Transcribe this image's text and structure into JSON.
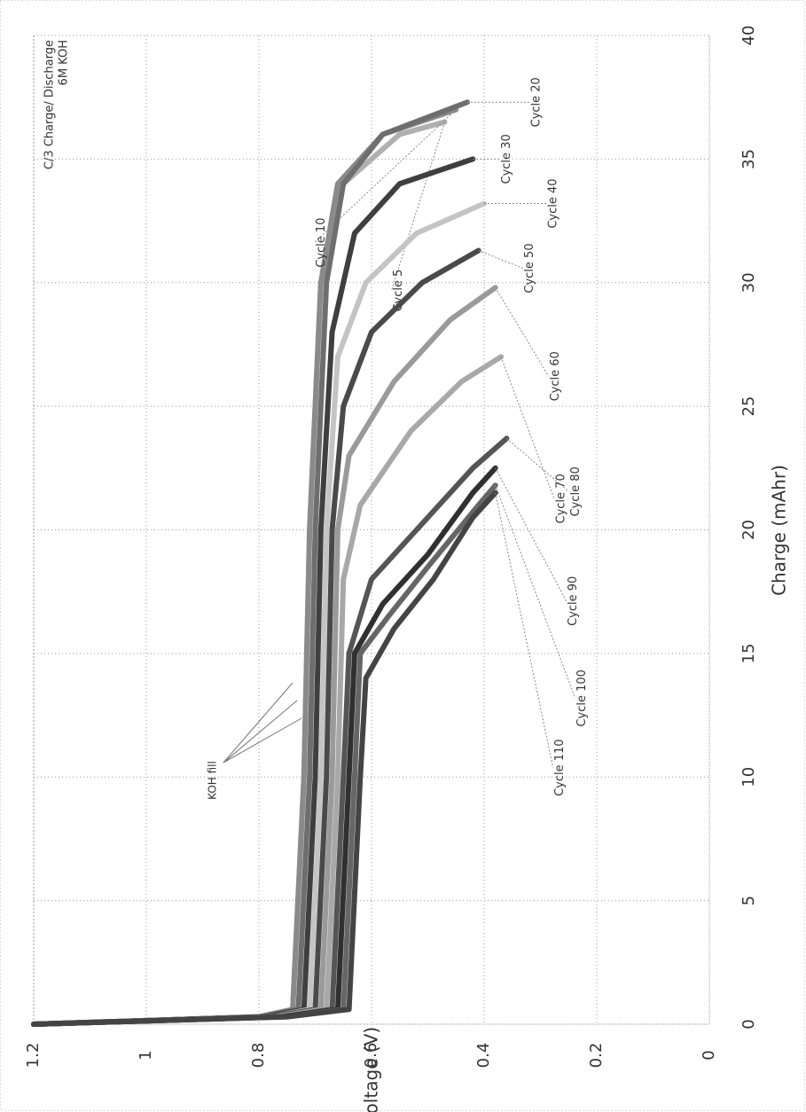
{
  "chart_data": {
    "type": "line",
    "title": "C/3 Charge/ Discharge",
    "subtitle": "6M KOH",
    "x_label": "Charge (mAhr)",
    "y_label": "Cell Voltage (V)",
    "annotation": "KOH fill",
    "xlim": [
      0,
      40
    ],
    "xticks": [
      0,
      5,
      10,
      15,
      20,
      25,
      30,
      35,
      40
    ],
    "ylim": [
      0,
      1.2
    ],
    "yticks": [
      0,
      0.2,
      0.4,
      0.6,
      0.8,
      1,
      1.2
    ],
    "grid": true,
    "series": [
      {
        "name": "Cycle 5",
        "color": "#b0b0b0",
        "x": [
          0,
          0.3,
          0.6,
          10,
          20,
          30,
          34,
          36,
          36.5
        ],
        "values": [
          1.2,
          0.8,
          0.74,
          0.72,
          0.71,
          0.69,
          0.65,
          0.55,
          0.47
        ]
      },
      {
        "name": "Cycle 10",
        "color": "#8a8a8a",
        "x": [
          0,
          0.3,
          0.6,
          10,
          20,
          30,
          34,
          36,
          37
        ],
        "values": [
          1.2,
          0.8,
          0.74,
          0.72,
          0.71,
          0.69,
          0.66,
          0.58,
          0.45
        ]
      },
      {
        "name": "Cycle 20",
        "color": "#6e6e6e",
        "x": [
          0,
          0.3,
          0.6,
          10,
          20,
          30,
          34,
          36,
          37.3
        ],
        "values": [
          1.2,
          0.8,
          0.73,
          0.71,
          0.7,
          0.68,
          0.65,
          0.58,
          0.43
        ]
      },
      {
        "name": "Cycle 30",
        "color": "#3f3f3f",
        "x": [
          0,
          0.3,
          0.6,
          10,
          20,
          28,
          32,
          34,
          35
        ],
        "values": [
          1.2,
          0.79,
          0.72,
          0.7,
          0.69,
          0.67,
          0.63,
          0.55,
          0.42
        ]
      },
      {
        "name": "Cycle 40",
        "color": "#c4c4c4",
        "x": [
          0,
          0.3,
          0.6,
          10,
          20,
          27,
          30,
          32,
          33.2
        ],
        "values": [
          1.2,
          0.78,
          0.71,
          0.69,
          0.68,
          0.66,
          0.61,
          0.52,
          0.4
        ]
      },
      {
        "name": "Cycle 50",
        "color": "#4a4a4a",
        "x": [
          0,
          0.3,
          0.6,
          10,
          20,
          25,
          28,
          30,
          31.3
        ],
        "values": [
          1.2,
          0.78,
          0.7,
          0.68,
          0.67,
          0.65,
          0.6,
          0.51,
          0.41
        ]
      },
      {
        "name": "Cycle 60",
        "color": "#9a9a9a",
        "x": [
          0,
          0.3,
          0.6,
          10,
          20,
          23,
          26,
          28.5,
          29.8
        ],
        "values": [
          1.2,
          0.77,
          0.69,
          0.67,
          0.66,
          0.64,
          0.56,
          0.46,
          0.38
        ]
      },
      {
        "name": "Cycle 70",
        "color": "#a8a8a8",
        "x": [
          0,
          0.3,
          0.6,
          10,
          18,
          21,
          24,
          26,
          27
        ],
        "values": [
          1.2,
          0.77,
          0.68,
          0.66,
          0.65,
          0.62,
          0.53,
          0.44,
          0.37
        ]
      },
      {
        "name": "Cycle 80",
        "color": "#555555",
        "x": [
          0,
          0.3,
          0.6,
          10,
          15,
          18,
          20,
          22.5,
          23.7
        ],
        "values": [
          1.2,
          0.76,
          0.67,
          0.65,
          0.64,
          0.6,
          0.52,
          0.42,
          0.36
        ]
      },
      {
        "name": "Cycle 90",
        "color": "#303030",
        "x": [
          0,
          0.3,
          0.6,
          10,
          15,
          17,
          19,
          21.5,
          22.5
        ],
        "values": [
          1.2,
          0.76,
          0.66,
          0.64,
          0.63,
          0.58,
          0.5,
          0.42,
          0.38
        ]
      },
      {
        "name": "Cycle 100",
        "color": "#666666",
        "x": [
          0,
          0.3,
          0.6,
          10,
          15,
          16.5,
          18.5,
          21,
          21.8
        ],
        "values": [
          1.2,
          0.75,
          0.65,
          0.63,
          0.62,
          0.57,
          0.5,
          0.41,
          0.38
        ]
      },
      {
        "name": "Cycle 110",
        "color": "#444444",
        "x": [
          0,
          0.3,
          0.6,
          10,
          14,
          16,
          18,
          20.5,
          21.5
        ],
        "values": [
          1.2,
          0.75,
          0.64,
          0.62,
          0.61,
          0.56,
          0.49,
          0.42,
          0.38
        ]
      }
    ]
  }
}
